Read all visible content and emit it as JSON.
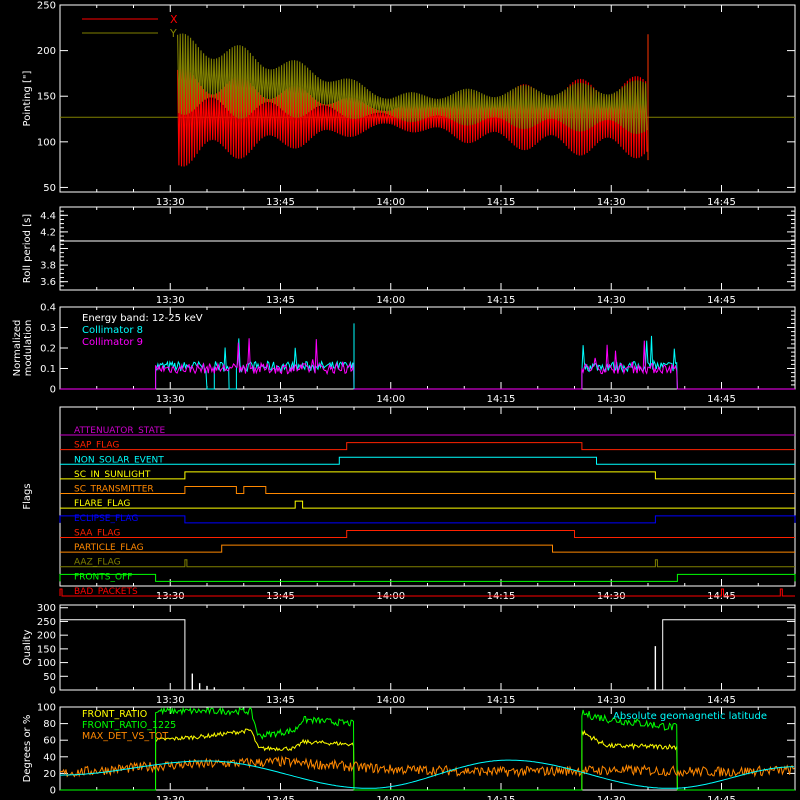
{
  "chart_data": [
    {
      "type": "line",
      "panel": "pointing",
      "ylabel": "Pointing [\"]",
      "ylim": [
        45,
        250
      ],
      "yticks": [
        50,
        100,
        150,
        200,
        250
      ],
      "xticks": [
        "13:30",
        "13:45",
        "14:00",
        "14:15",
        "14:30",
        "14:45"
      ],
      "legend": "top-left",
      "series": [
        {
          "name": "X",
          "color": "#ff0000",
          "x": [
            "13:31",
            "13:40",
            "13:50",
            "14:00",
            "14:10",
            "14:20",
            "14:30",
            "14:35"
          ],
          "center": [
            127,
            127,
            127,
            127,
            127,
            127,
            127,
            127
          ],
          "amplitude": [
            55,
            45,
            30,
            12,
            28,
            38,
            45,
            45
          ]
        },
        {
          "name": "Y",
          "color": "#808000",
          "x": [
            "13:31",
            "13:40",
            "13:50",
            "14:00",
            "14:10",
            "14:20",
            "14:30",
            "14:35"
          ],
          "center": [
            175,
            165,
            155,
            138,
            138,
            138,
            138,
            138
          ],
          "amplitude": [
            45,
            40,
            28,
            15,
            20,
            25,
            28,
            30
          ]
        }
      ],
      "baseline": 127
    },
    {
      "type": "line",
      "panel": "roll-period",
      "ylabel": "Roll period [s]",
      "ylim": [
        3.5,
        4.5
      ],
      "yticks": [
        3.6,
        3.8,
        4.0,
        4.2,
        4.4
      ],
      "xticks": [
        "13:30",
        "13:45",
        "14:00",
        "14:15",
        "14:30",
        "14:45"
      ],
      "series": [
        {
          "name": "",
          "color": "#ffffff",
          "x": [
            "13:15",
            "14:55"
          ],
          "values": [
            4.09,
            4.09
          ]
        }
      ]
    },
    {
      "type": "line",
      "panel": "modulation",
      "ylabel": "Normalized modulation",
      "ylim": [
        0,
        0.4
      ],
      "yticks": [
        0.0,
        0.1,
        0.2,
        0.3,
        0.4
      ],
      "xticks": [
        "13:30",
        "13:45",
        "14:00",
        "14:15",
        "14:30",
        "14:45"
      ],
      "annotation": "Energy band: 12-25 keV",
      "series": [
        {
          "name": "Collimator 8",
          "color": "#00ffff",
          "segments": [
            [
              "13:28",
              "13:35",
              "13:36",
              "13:38",
              "13:39",
              "13:55"
            ],
            [
              "14:26",
              "14:39"
            ]
          ],
          "level": 0.11
        },
        {
          "name": "Collimator 9",
          "color": "#ff00ff",
          "segments": [
            [
              "13:28",
              "13:55"
            ],
            [
              "14:26",
              "14:39"
            ]
          ],
          "level": 0.1
        }
      ]
    },
    {
      "type": "line",
      "panel": "flags",
      "ylabel": "Flags",
      "xticks": [
        "13:30",
        "13:45",
        "14:00",
        "14:15",
        "14:30",
        "14:45"
      ],
      "flags": [
        {
          "name": "ATTENUATOR_STATE",
          "color": "#cc00cc",
          "high": []
        },
        {
          "name": "SAP_FLAG",
          "color": "#ff2200",
          "high": [
            [
              "13:54",
              "14:26"
            ]
          ]
        },
        {
          "name": "NON_SOLAR_EVENT",
          "color": "#00ffff",
          "high": [
            [
              "13:53",
              "14:28"
            ]
          ]
        },
        {
          "name": "SC_IN_SUNLIGHT",
          "color": "#ffff00",
          "high": [
            [
              "13:32",
              "14:36"
            ]
          ]
        },
        {
          "name": "SC_TRANSMITTER",
          "color": "#ff8800",
          "high": [
            [
              "13:32",
              "13:39"
            ],
            [
              "13:40",
              "13:43"
            ]
          ]
        },
        {
          "name": "FLARE_FLAG",
          "color": "#ffff00",
          "high": [
            [
              "13:47",
              "13:48"
            ]
          ]
        },
        {
          "name": "ECLIPSE_FLAG",
          "color": "#0000ff",
          "high": [
            [
              "13:15",
              "13:32"
            ],
            [
              "14:36",
              "14:55"
            ]
          ]
        },
        {
          "name": "SAA_FLAG",
          "color": "#ff2200",
          "high": [
            [
              "13:54",
              "14:25"
            ]
          ]
        },
        {
          "name": "PARTICLE_FLAG",
          "color": "#ff8800",
          "high": [
            [
              "13:37",
              "14:22"
            ]
          ]
        },
        {
          "name": "AAZ_FLAG",
          "color": "#808000",
          "high": [
            [
              "13:32",
              "13:32"
            ],
            [
              "14:36",
              "14:36"
            ]
          ]
        },
        {
          "name": "FRONTS_OFF",
          "color": "#00ff00",
          "high": [
            [
              "13:15",
              "13:28"
            ],
            [
              "14:39",
              "14:55"
            ]
          ]
        },
        {
          "name": "BAD_PACKETS",
          "color": "#ff0000",
          "high": [
            [
              "13:15",
              "13:15"
            ],
            [
              "14:45",
              "14:45"
            ],
            [
              "14:53",
              "14:53"
            ]
          ]
        }
      ]
    },
    {
      "type": "line",
      "panel": "quality",
      "ylabel": "Quality",
      "ylim": [
        0,
        310
      ],
      "yticks": [
        0,
        50,
        100,
        150,
        200,
        250,
        300
      ],
      "xticks": [
        "13:30",
        "13:45",
        "14:00",
        "14:15",
        "14:30",
        "14:45"
      ],
      "series": [
        {
          "name": "",
          "color": "#ffffff",
          "x": [
            "13:15",
            "13:32",
            "13:32",
            "14:37",
            "14:37",
            "14:55"
          ],
          "values": [
            256,
            256,
            0,
            0,
            256,
            256
          ]
        }
      ]
    },
    {
      "type": "line",
      "panel": "rates",
      "ylabel": "Degrees or %",
      "ylim": [
        0,
        100
      ],
      "yticks": [
        0,
        20,
        40,
        60,
        80,
        100
      ],
      "xticks": [
        "13:30",
        "13:45",
        "14:00",
        "14:15",
        "14:30",
        "14:45"
      ],
      "annotation_right": "Absolute geomagnetic latitude",
      "series": [
        {
          "name": "FRONT_RATIO",
          "color": "#ffff00",
          "x": [
            "13:28",
            "13:35",
            "13:41",
            "13:42",
            "13:47",
            "13:48",
            "13:55"
          ],
          "values": [
            60,
            65,
            72,
            50,
            50,
            58,
            55
          ],
          "x2": [
            "14:26",
            "14:29",
            "14:30",
            "14:39"
          ],
          "values2": [
            70,
            55,
            53,
            52
          ]
        },
        {
          "name": "FRONT_RATIO_1225",
          "color": "#00ff00",
          "x": [
            "13:28",
            "13:41",
            "13:42",
            "13:47",
            "13:48",
            "13:55"
          ],
          "values": [
            95,
            95,
            65,
            72,
            85,
            80
          ],
          "x2": [
            "14:26",
            "14:30",
            "14:39"
          ],
          "values2": [
            92,
            85,
            75
          ]
        },
        {
          "name": "MAX_DET_VS_TOT",
          "color": "#ff8800",
          "x": [
            "13:15",
            "13:30",
            "13:45",
            "14:00",
            "14:15",
            "14:30",
            "14:45",
            "14:55"
          ],
          "values": [
            20,
            30,
            34,
            25,
            22,
            24,
            22,
            24
          ]
        },
        {
          "name": "",
          "color": "#00ffff",
          "x": [
            "13:15",
            "13:35",
            "13:57",
            "14:16",
            "14:38",
            "14:55"
          ],
          "values": [
            18,
            35,
            2,
            36,
            2,
            28
          ]
        }
      ]
    }
  ]
}
